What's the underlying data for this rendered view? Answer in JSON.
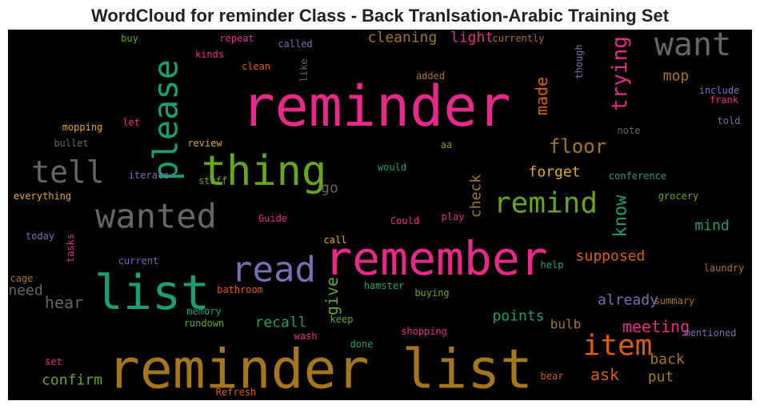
{
  "title": "WordCloud for reminder Class - Back Tranlsation-Arabic Training Set",
  "words": [
    {
      "text": "reminder list",
      "color": "#a6761d"
    },
    {
      "text": "reminder",
      "color": "#e7298a"
    },
    {
      "text": "remember",
      "color": "#e7298a"
    },
    {
      "text": "list",
      "color": "#1b9e77"
    },
    {
      "text": "thing",
      "color": "#66a61e"
    },
    {
      "text": "please",
      "color": "#1b9e77"
    },
    {
      "text": "want",
      "color": "#666666"
    },
    {
      "text": "wanted",
      "color": "#666666"
    },
    {
      "text": "tell",
      "color": "#666666"
    },
    {
      "text": "read",
      "color": "#7570b3"
    },
    {
      "text": "remind",
      "color": "#66a61e"
    },
    {
      "text": "item",
      "color": "#d95f02"
    },
    {
      "text": "trying",
      "color": "#e7298a"
    },
    {
      "text": "floor",
      "color": "#a6761d"
    },
    {
      "text": "made",
      "color": "#d95f02"
    },
    {
      "text": "mop",
      "color": "#a6761d"
    },
    {
      "text": "cleaning",
      "color": "#a6761d"
    },
    {
      "text": "light",
      "color": "#e7298a"
    },
    {
      "text": "know",
      "color": "#1b9e77"
    },
    {
      "text": "mind",
      "color": "#1b9e77"
    },
    {
      "text": "supposed",
      "color": "#d95f02"
    },
    {
      "text": "already",
      "color": "#7570b3"
    },
    {
      "text": "meeting",
      "color": "#e7298a"
    },
    {
      "text": "back",
      "color": "#a6761d"
    },
    {
      "text": "ask",
      "color": "#d95f02"
    },
    {
      "text": "put",
      "color": "#a6761d"
    },
    {
      "text": "forget",
      "color": "#e6ab02"
    },
    {
      "text": "check",
      "color": "#a6761d"
    },
    {
      "text": "give",
      "color": "#66a61e"
    },
    {
      "text": "go",
      "color": "#666666"
    },
    {
      "text": "points",
      "color": "#1b9e77"
    },
    {
      "text": "bulb",
      "color": "#a6761d"
    },
    {
      "text": "recall",
      "color": "#1b9e77"
    },
    {
      "text": "hear",
      "color": "#666666"
    },
    {
      "text": "need",
      "color": "#666666"
    },
    {
      "text": "confirm",
      "color": "#66a61e"
    },
    {
      "text": "memory",
      "color": "#1b9e77"
    },
    {
      "text": "rundown",
      "color": "#66a61e"
    },
    {
      "text": "bathroom",
      "color": "#d95f02"
    },
    {
      "text": "wash",
      "color": "#e7298a"
    },
    {
      "text": "done",
      "color": "#1b9e77"
    },
    {
      "text": "keep",
      "color": "#66a61e"
    },
    {
      "text": "hamster",
      "color": "#1b9e77"
    },
    {
      "text": "buying",
      "color": "#66a61e"
    },
    {
      "text": "shopping",
      "color": "#e7298a"
    },
    {
      "text": "help",
      "color": "#1b9e77"
    },
    {
      "text": "summary",
      "color": "#a6761d"
    },
    {
      "text": "mentioned",
      "color": "#7570b3"
    },
    {
      "text": "laundry",
      "color": "#a6761d"
    },
    {
      "text": "bear",
      "color": "#d95f02"
    },
    {
      "text": "Refresh",
      "color": "#d95f02"
    },
    {
      "text": "set",
      "color": "#e7298a"
    },
    {
      "text": "cage",
      "color": "#a6761d"
    },
    {
      "text": "current",
      "color": "#7570b3"
    },
    {
      "text": "call",
      "color": "#e6ab02"
    },
    {
      "text": "Could",
      "color": "#e7298a"
    },
    {
      "text": "play",
      "color": "#e7298a"
    },
    {
      "text": "Guide",
      "color": "#e7298a"
    },
    {
      "text": "tasks",
      "color": "#e7298a"
    },
    {
      "text": "today",
      "color": "#7570b3"
    },
    {
      "text": "everything",
      "color": "#e6ab02"
    },
    {
      "text": "iterate",
      "color": "#7570b3"
    },
    {
      "text": "stuff",
      "color": "#66a61e"
    },
    {
      "text": "would",
      "color": "#1b9e77"
    },
    {
      "text": "aa",
      "color": "#66a61e"
    },
    {
      "text": "review",
      "color": "#e6ab02"
    },
    {
      "text": "bullet",
      "color": "#666666"
    },
    {
      "text": "mopping",
      "color": "#e6ab02"
    },
    {
      "text": "let",
      "color": "#e7298a"
    },
    {
      "text": "buy",
      "color": "#66a61e"
    },
    {
      "text": "kinds",
      "color": "#e7298a"
    },
    {
      "text": "repeat",
      "color": "#e7298a"
    },
    {
      "text": "clean",
      "color": "#d95f02"
    },
    {
      "text": "called",
      "color": "#7570b3"
    },
    {
      "text": "like",
      "color": "#666666"
    },
    {
      "text": "added",
      "color": "#a6761d"
    },
    {
      "text": "currently",
      "color": "#a6761d"
    },
    {
      "text": "though",
      "color": "#7570b3"
    },
    {
      "text": "include",
      "color": "#7570b3"
    },
    {
      "text": "frank",
      "color": "#e7298a"
    },
    {
      "text": "told",
      "color": "#7570b3"
    },
    {
      "text": "note",
      "color": "#666666"
    },
    {
      "text": "conference",
      "color": "#1b9e77"
    },
    {
      "text": "grocery",
      "color": "#66a61e"
    }
  ]
}
